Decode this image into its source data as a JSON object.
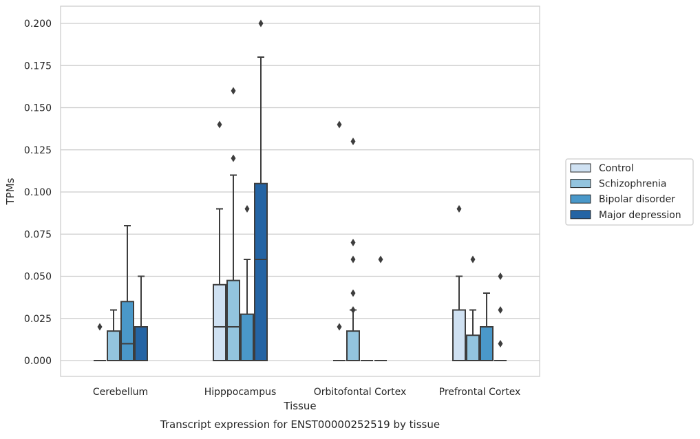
{
  "chart_data": {
    "type": "boxplot",
    "title": "Transcript expression for ENST00000252519 by tissue",
    "xlabel": "Tissue",
    "ylabel": "TPMs",
    "ylim": [
      -0.01,
      0.21
    ],
    "yticks": [
      "0.000",
      "0.025",
      "0.050",
      "0.075",
      "0.100",
      "0.125",
      "0.150",
      "0.175",
      "0.200"
    ],
    "ytick_values": [
      0,
      0.025,
      0.05,
      0.075,
      0.1,
      0.125,
      0.15,
      0.175,
      0.2
    ],
    "grid": true,
    "legend_position": "right",
    "categories": [
      "Cerebellum",
      "Hipppocampus",
      "Orbitofontal Cortex",
      "Prefrontal Cortex"
    ],
    "series": [
      {
        "name": "Control",
        "color": "#cfe1f2",
        "boxes": [
          {
            "q1": 0,
            "median": 0,
            "q3": 0,
            "whisker_low": 0,
            "whisker_high": 0,
            "outliers": [
              0.02
            ]
          },
          {
            "q1": 0,
            "median": 0.02,
            "q3": 0.045,
            "whisker_low": 0,
            "whisker_high": 0.09,
            "outliers": [
              0.14
            ]
          },
          {
            "q1": 0,
            "median": 0,
            "q3": 0,
            "whisker_low": 0,
            "whisker_high": 0,
            "outliers": [
              0.02,
              0.14
            ]
          },
          {
            "q1": 0,
            "median": 0,
            "q3": 0.03,
            "whisker_low": 0,
            "whisker_high": 0.05,
            "outliers": [
              0.09
            ]
          }
        ]
      },
      {
        "name": "Schizophrenia",
        "color": "#93c4de",
        "boxes": [
          {
            "q1": 0,
            "median": 0,
            "q3": 0.0175,
            "whisker_low": 0,
            "whisker_high": 0.03,
            "outliers": []
          },
          {
            "q1": 0,
            "median": 0.02,
            "q3": 0.0475,
            "whisker_low": 0,
            "whisker_high": 0.11,
            "outliers": [
              0.12,
              0.16
            ]
          },
          {
            "q1": 0,
            "median": 0,
            "q3": 0.0175,
            "whisker_low": 0,
            "whisker_high": 0.03,
            "outliers": [
              0.03,
              0.04,
              0.06,
              0.07,
              0.13
            ]
          },
          {
            "q1": 0,
            "median": 0,
            "q3": 0.015,
            "whisker_low": 0,
            "whisker_high": 0.03,
            "outliers": [
              0.06
            ]
          }
        ]
      },
      {
        "name": "Bipolar disorder",
        "color": "#4a98c9",
        "boxes": [
          {
            "q1": 0,
            "median": 0.01,
            "q3": 0.035,
            "whisker_low": 0,
            "whisker_high": 0.08,
            "outliers": []
          },
          {
            "q1": 0,
            "median": 0,
            "q3": 0.0275,
            "whisker_low": 0,
            "whisker_high": 0.06,
            "outliers": [
              0.09
            ]
          },
          {
            "q1": 0,
            "median": 0,
            "q3": 0,
            "whisker_low": 0,
            "whisker_high": 0,
            "outliers": []
          },
          {
            "q1": 0,
            "median": 0,
            "q3": 0.02,
            "whisker_low": 0,
            "whisker_high": 0.04,
            "outliers": []
          }
        ]
      },
      {
        "name": "Major depression",
        "color": "#2464a4",
        "boxes": [
          {
            "q1": 0,
            "median": 0,
            "q3": 0.02,
            "whisker_low": 0,
            "whisker_high": 0.05,
            "outliers": []
          },
          {
            "q1": 0,
            "median": 0.06,
            "q3": 0.105,
            "whisker_low": 0,
            "whisker_high": 0.18,
            "outliers": [
              0.2
            ]
          },
          {
            "q1": 0,
            "median": 0,
            "q3": 0,
            "whisker_low": 0,
            "whisker_high": 0,
            "outliers": [
              0.06
            ]
          },
          {
            "q1": 0,
            "median": 0,
            "q3": 0,
            "whisker_low": 0,
            "whisker_high": 0,
            "outliers": [
              0.01,
              0.03,
              0.05
            ]
          }
        ]
      }
    ]
  }
}
